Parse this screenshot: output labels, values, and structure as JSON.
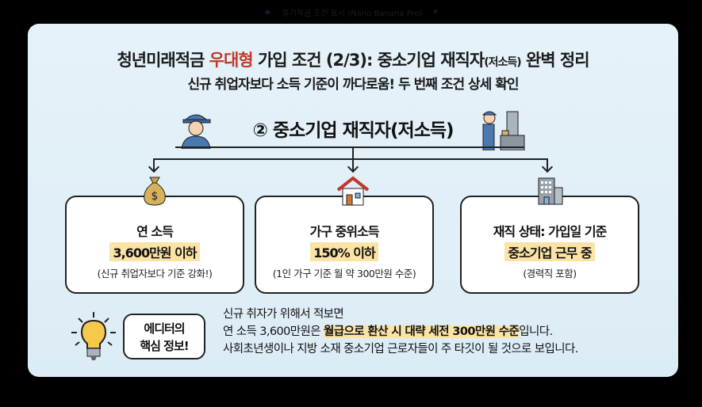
{
  "window": {
    "title": "중기적금 조건 표시 (Nano Banana Pro)"
  },
  "infographic": {
    "title_pre": "청년미래적금 ",
    "title_highlight": "우대형",
    "title_mid": " 가입 조건 (2/3): 중소기업 재직자",
    "title_small": "(저소득)",
    "title_post": " 완벽 정리",
    "subtitle": "신규 취업자보다 소득 기준이 까다로움! 두 번째 조건 상세 확인",
    "heading": "② 중소기업 재직자(저소득)",
    "cards": [
      {
        "icon": "money-bag-icon",
        "line1": "연 소득",
        "line2": "3,600만원 이하",
        "line3": "(신규 취업자보다 기준 강화!)"
      },
      {
        "icon": "house-icon",
        "line1": "가구 중위소득",
        "line2": "150% 이하",
        "line3": "(1인 가구 기준 월 약 300만원 수준)"
      },
      {
        "icon": "office-building-icon",
        "line1": "재직 상태: 가입일 기준",
        "line2": "중소기업 근무 중",
        "line3": "(경력직 포함)"
      }
    ],
    "editor_bubble": {
      "line1": "에디터의",
      "line2": "핵심 정보!"
    },
    "tip": {
      "line1": "신규 취자가 위해서 적보면",
      "line2_pre": "연 소득 3,600만원은 ",
      "line2_highlight": "월급으로 환산 시 대략 세전 300만원 수준",
      "line2_post": "입니다.",
      "line3": "사회초년생이나 지방 소재 중소기업 근로자들이 주 타깃이 될 것으로 보입니다."
    },
    "colors": {
      "accent_red": "#c0392b",
      "highlight": "#fbe3a6",
      "background": "#e3f0f8"
    }
  }
}
